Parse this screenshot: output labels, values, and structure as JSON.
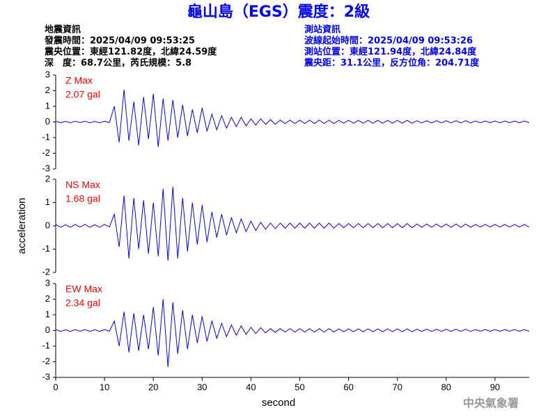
{
  "header": {
    "title": "龜山島（EGS）震度：2級",
    "left": [
      "地震資訊",
      "發震時間：2025/04/09 09:53:25",
      "震央位置：東經121.82度，北緯24.59度",
      "深　度：68.7公里，芮氏規模：5.8"
    ],
    "right": [
      "測站資訊",
      "波線起始時間：2025/04/09 09:53:26",
      "測站位置：東經121.94度，北緯24.84度",
      "震央距：31.1公里，反方位角：204.71度"
    ],
    "footer": "中央氣象署"
  },
  "chart_data": [
    {
      "type": "line",
      "annotations": [
        "Z Max",
        "2.07 gal"
      ],
      "color": "#0000ff",
      "xlim": [
        0,
        97
      ],
      "ylim": [
        -3,
        3
      ],
      "yticks": [
        -3,
        -2,
        -1,
        0,
        1,
        2,
        3
      ],
      "x": [
        0,
        1,
        2,
        3,
        4,
        5,
        6,
        7,
        8,
        9,
        10,
        11,
        12,
        13,
        14,
        15,
        16,
        17,
        18,
        19,
        20,
        21,
        22,
        23,
        24,
        25,
        26,
        27,
        28,
        29,
        30,
        31,
        32,
        33,
        34,
        35,
        36,
        37,
        38,
        39,
        40,
        41,
        42,
        43,
        44,
        45,
        46,
        47,
        48,
        49,
        50,
        51,
        52,
        53,
        54,
        55,
        56,
        57,
        58,
        59,
        60,
        61,
        62,
        63,
        64,
        65,
        66,
        67,
        68,
        69,
        70,
        71,
        72,
        73,
        74,
        75,
        76,
        77,
        78,
        79,
        80,
        81,
        82,
        83,
        84,
        85,
        86,
        87,
        88,
        89,
        90,
        91,
        92,
        93,
        94,
        95,
        96,
        97
      ],
      "values": [
        0.05,
        -0.05,
        0.04,
        -0.05,
        0.05,
        -0.04,
        0.05,
        -0.05,
        0.04,
        -0.05,
        0.05,
        -0.04,
        1.0,
        -1.3,
        2.07,
        -1.2,
        1.3,
        -1.5,
        1.6,
        -1.1,
        1.8,
        -1.6,
        1.5,
        -1.2,
        1.4,
        -1.0,
        1.1,
        -0.9,
        0.8,
        -0.7,
        0.9,
        -0.6,
        0.5,
        -0.5,
        0.4,
        -0.4,
        0.3,
        -0.3,
        0.3,
        -0.25,
        0.2,
        -0.2,
        0.2,
        -0.15,
        0.15,
        -0.15,
        0.12,
        -0.1,
        0.12,
        -0.1,
        0.12,
        -0.1,
        0.12,
        -0.1,
        0.12,
        -0.1,
        0.12,
        -0.1,
        0.1,
        -0.08,
        0.1,
        -0.08,
        0.1,
        -0.08,
        0.1,
        -0.08,
        0.1,
        -0.08,
        0.1,
        -0.08,
        0.1,
        -0.08,
        0.1,
        -0.08,
        0.08,
        -0.06,
        0.08,
        -0.06,
        0.08,
        -0.06,
        0.08,
        -0.06,
        0.08,
        -0.06,
        0.08,
        -0.06,
        0.06,
        -0.05,
        0.06,
        -0.05,
        0.06,
        -0.05,
        0.06,
        -0.05,
        0.06,
        -0.05,
        0.06,
        -0.05
      ]
    },
    {
      "type": "line",
      "annotations": [
        "NS Max",
        "1.68 gal"
      ],
      "color": "#0000ff",
      "ylabel": "acceleration",
      "xlim": [
        0,
        97
      ],
      "ylim": [
        -2,
        2
      ],
      "yticks": [
        -2,
        -1,
        0,
        1,
        2
      ],
      "x": [
        0,
        1,
        2,
        3,
        4,
        5,
        6,
        7,
        8,
        9,
        10,
        11,
        12,
        13,
        14,
        15,
        16,
        17,
        18,
        19,
        20,
        21,
        22,
        23,
        24,
        25,
        26,
        27,
        28,
        29,
        30,
        31,
        32,
        33,
        34,
        35,
        36,
        37,
        38,
        39,
        40,
        41,
        42,
        43,
        44,
        45,
        46,
        47,
        48,
        49,
        50,
        51,
        52,
        53,
        54,
        55,
        56,
        57,
        58,
        59,
        60,
        61,
        62,
        63,
        64,
        65,
        66,
        67,
        68,
        69,
        70,
        71,
        72,
        73,
        74,
        75,
        76,
        77,
        78,
        79,
        80,
        81,
        82,
        83,
        84,
        85,
        86,
        87,
        88,
        89,
        90,
        91,
        92,
        93,
        94,
        95,
        96,
        97
      ],
      "values": [
        0.06,
        -0.06,
        0.05,
        -0.06,
        0.06,
        -0.05,
        0.06,
        -0.06,
        0.05,
        -0.06,
        0.06,
        -0.05,
        0.5,
        -0.9,
        1.3,
        -1.4,
        1.2,
        -1.0,
        1.1,
        -1.2,
        1.0,
        -1.3,
        1.6,
        -1.5,
        1.68,
        -1.4,
        1.2,
        -1.1,
        1.0,
        -0.8,
        0.9,
        -0.7,
        0.6,
        -0.5,
        0.5,
        -0.4,
        0.35,
        -0.3,
        0.3,
        -0.25,
        0.2,
        -0.2,
        0.15,
        -0.15,
        0.12,
        -0.12,
        0.12,
        -0.1,
        0.12,
        -0.1,
        0.12,
        -0.1,
        0.12,
        -0.1,
        0.12,
        -0.1,
        0.12,
        -0.1,
        0.1,
        -0.08,
        0.1,
        -0.08,
        0.1,
        -0.08,
        0.1,
        -0.08,
        0.1,
        -0.08,
        0.1,
        -0.08,
        0.1,
        -0.08,
        0.1,
        -0.08,
        0.08,
        -0.06,
        0.08,
        -0.06,
        0.08,
        -0.06,
        0.08,
        -0.06,
        0.08,
        -0.06,
        0.08,
        -0.06,
        0.06,
        -0.05,
        0.06,
        -0.05,
        0.06,
        -0.05,
        0.06,
        -0.05,
        0.06,
        -0.05,
        0.06,
        -0.05
      ]
    },
    {
      "type": "line",
      "annotations": [
        "EW Max",
        "2.34 gal"
      ],
      "color": "#0000ff",
      "xlabel": "second",
      "xlim": [
        0,
        97
      ],
      "xticks": [
        0,
        10,
        20,
        30,
        40,
        50,
        60,
        70,
        80,
        90
      ],
      "ylim": [
        -3,
        3
      ],
      "yticks": [
        -3,
        -2,
        -1,
        0,
        1,
        2,
        3
      ],
      "x": [
        0,
        1,
        2,
        3,
        4,
        5,
        6,
        7,
        8,
        9,
        10,
        11,
        12,
        13,
        14,
        15,
        16,
        17,
        18,
        19,
        20,
        21,
        22,
        23,
        24,
        25,
        26,
        27,
        28,
        29,
        30,
        31,
        32,
        33,
        34,
        35,
        36,
        37,
        38,
        39,
        40,
        41,
        42,
        43,
        44,
        45,
        46,
        47,
        48,
        49,
        50,
        51,
        52,
        53,
        54,
        55,
        56,
        57,
        58,
        59,
        60,
        61,
        62,
        63,
        64,
        65,
        66,
        67,
        68,
        69,
        70,
        71,
        72,
        73,
        74,
        75,
        76,
        77,
        78,
        79,
        80,
        81,
        82,
        83,
        84,
        85,
        86,
        87,
        88,
        89,
        90,
        91,
        92,
        93,
        94,
        95,
        96,
        97
      ],
      "values": [
        0.06,
        -0.06,
        0.05,
        -0.06,
        0.06,
        -0.05,
        0.06,
        -0.06,
        0.05,
        -0.06,
        0.06,
        -0.05,
        0.6,
        -1.0,
        1.2,
        -1.4,
        1.1,
        -1.3,
        1.0,
        -1.2,
        1.5,
        -1.6,
        2.0,
        -2.34,
        1.8,
        -1.5,
        1.3,
        -1.2,
        1.0,
        -0.8,
        0.9,
        -0.7,
        0.6,
        -0.5,
        0.45,
        -0.4,
        0.35,
        -0.3,
        0.3,
        -0.25,
        0.2,
        -0.2,
        0.18,
        -0.15,
        0.12,
        -0.12,
        0.12,
        -0.1,
        0.12,
        -0.1,
        0.12,
        -0.1,
        0.12,
        -0.1,
        0.12,
        -0.1,
        0.12,
        -0.1,
        0.1,
        -0.08,
        0.1,
        -0.08,
        0.1,
        -0.08,
        0.1,
        -0.08,
        0.1,
        -0.08,
        0.1,
        -0.08,
        0.1,
        -0.08,
        0.1,
        -0.08,
        0.08,
        -0.06,
        0.08,
        -0.06,
        0.08,
        -0.06,
        0.08,
        -0.06,
        0.08,
        -0.06,
        0.08,
        -0.06,
        0.06,
        -0.05,
        0.06,
        -0.05,
        0.06,
        -0.05,
        0.06,
        -0.05,
        0.06,
        -0.05,
        0.06,
        -0.05
      ]
    }
  ]
}
